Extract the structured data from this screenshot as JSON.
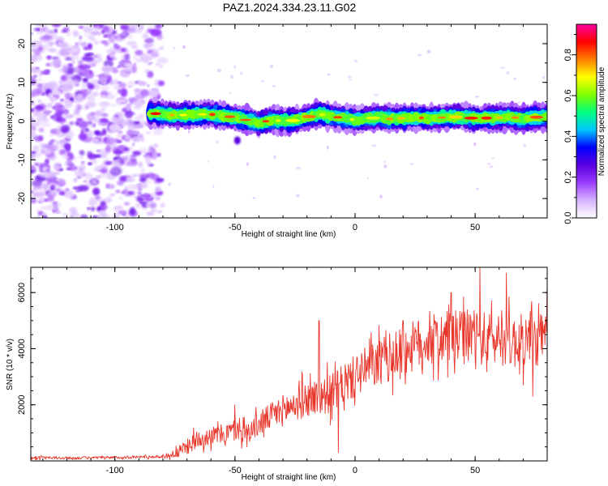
{
  "figure": {
    "title": "PAZ1.2024.334.23.11.G02"
  },
  "chart_data": [
    {
      "type": "heatmap",
      "xlabel": "Height of straight line (km)",
      "ylabel": "Frequency (Hz)",
      "xlim": [
        -135,
        80
      ],
      "ylim": [
        -25,
        25
      ],
      "xticks": [
        -100,
        -50,
        0,
        50
      ],
      "yticks": [
        -20,
        -10,
        0,
        10,
        20
      ],
      "ridge": {
        "x": [
          -85,
          -80,
          -75,
          -70,
          -65,
          -60,
          -55,
          -50,
          -45,
          -40,
          -35,
          -30,
          -25,
          -20,
          -15,
          -10,
          -5,
          0,
          5,
          10,
          15,
          20,
          25,
          30,
          35,
          40,
          45,
          50,
          55,
          60,
          65,
          70,
          75,
          80
        ],
        "frequency": [
          2,
          1.8,
          1.5,
          1.6,
          1.7,
          1.8,
          1.3,
          1.0,
          0.2,
          -0.5,
          0.3,
          0.0,
          0.2,
          1.0,
          1.8,
          1.2,
          0.8,
          0.3,
          0.6,
          1.0,
          0.5,
          0.8,
          1.0,
          0.7,
          0.9,
          1.0,
          1.1,
          0.6,
          0.8,
          0.9,
          1.1,
          0.5,
          1.0,
          1.1
        ]
      },
      "noise_region": {
        "x_range": [
          -135,
          -75
        ],
        "frequency_range": [
          -25,
          25
        ]
      },
      "colorbar": {
        "label": "Normalized spectral amplitude",
        "range": [
          0,
          0.95
        ],
        "ticks": [
          0.0,
          0.2,
          0.4,
          0.6,
          0.8
        ],
        "colors": [
          "#ffffff",
          "#d6b3ff",
          "#9a3dff",
          "#5a00e0",
          "#0000ff",
          "#00c8ff",
          "#00ff80",
          "#80ff00",
          "#ffff00",
          "#ff8000",
          "#ff0000",
          "#ff00a0"
        ]
      }
    },
    {
      "type": "line",
      "xlabel": "Height of straight line (km)",
      "ylabel": "SNR (10 * v/v)",
      "xlim": [
        -135,
        80
      ],
      "ylim": [
        0,
        6900
      ],
      "xticks": [
        -100,
        -50,
        0,
        50
      ],
      "yticks": [
        2000,
        4000,
        6000
      ],
      "series": [
        {
          "color": "#e8362b",
          "envelope_x": [
            -135,
            -120,
            -100,
            -90,
            -80,
            -75,
            -70,
            -65,
            -60,
            -55,
            -50,
            -45,
            -40,
            -35,
            -30,
            -25,
            -20,
            -15,
            -10,
            -5,
            0,
            5,
            10,
            15,
            20,
            25,
            30,
            35,
            40,
            45,
            50,
            55,
            60,
            65,
            70,
            75,
            80
          ],
          "envelope_mean": [
            120,
            100,
            120,
            140,
            150,
            250,
            500,
            800,
            900,
            950,
            1100,
            1000,
            1300,
            1600,
            1800,
            2000,
            2200,
            2300,
            2400,
            2700,
            3000,
            3300,
            3500,
            3700,
            3900,
            4100,
            4300,
            4300,
            4400,
            4400,
            4500,
            4300,
            4400,
            4200,
            4300,
            4300,
            4400
          ],
          "envelope_spread": [
            60,
            60,
            60,
            60,
            70,
            200,
            350,
            400,
            400,
            450,
            500,
            450,
            550,
            600,
            700,
            750,
            800,
            850,
            850,
            900,
            950,
            1000,
            1050,
            1100,
            1100,
            1150,
            1150,
            1200,
            1200,
            1200,
            1250,
            1200,
            1200,
            1200,
            1200,
            1200,
            1200
          ],
          "peaks": [
            [
              -50,
              2000
            ],
            [
              -45,
              500
            ],
            [
              -15,
              5000
            ],
            [
              -7,
              300
            ],
            [
              20,
              5000
            ],
            [
              40,
              6000
            ],
            [
              52,
              6900
            ],
            [
              63,
              6700
            ],
            [
              74,
              2300
            ],
            [
              80,
              6100
            ]
          ]
        }
      ]
    }
  ]
}
